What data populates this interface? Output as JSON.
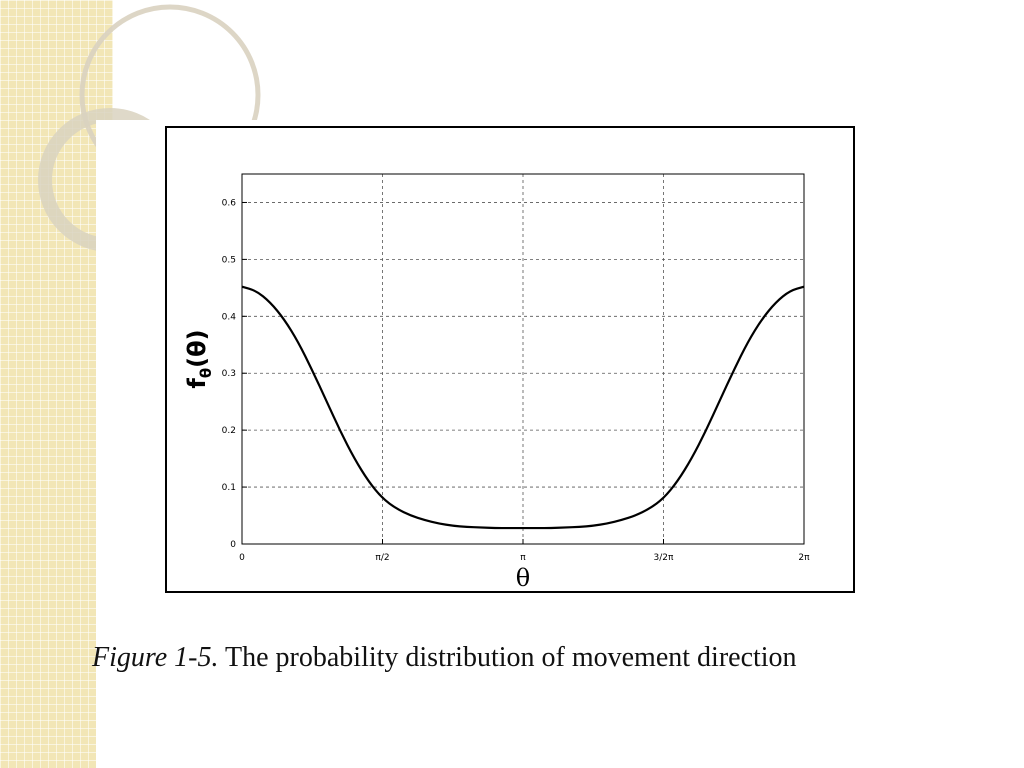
{
  "theme": {
    "strip_color": "#f2e6b6",
    "ring_color": "#d9d2c0",
    "curve_color": "#000000",
    "grid_color": "#555555"
  },
  "caption": {
    "figure_label": "Figure 1-5.",
    "text": "The probability distribution of movement direction"
  },
  "chart_data": {
    "type": "line",
    "title": "",
    "xlabel": "θ",
    "ylabel": "fθ(θ)",
    "xlim": [
      0,
      6.2832
    ],
    "ylim": [
      0,
      0.65
    ],
    "grid": true,
    "x_ticks": [
      {
        "value": 0,
        "label": "0"
      },
      {
        "value": 1.5708,
        "label": "π/2"
      },
      {
        "value": 3.1416,
        "label": "π"
      },
      {
        "value": 4.7124,
        "label": "3/2π"
      },
      {
        "value": 6.2832,
        "label": "2π"
      }
    ],
    "y_ticks": [
      {
        "value": 0,
        "label": "0"
      },
      {
        "value": 0.1,
        "label": "0.1"
      },
      {
        "value": 0.2,
        "label": "0.2"
      },
      {
        "value": 0.3,
        "label": "0.3"
      },
      {
        "value": 0.4,
        "label": "0.4"
      },
      {
        "value": 0.5,
        "label": "0.5"
      },
      {
        "value": 0.6,
        "label": "0.6"
      }
    ],
    "series": [
      {
        "x": [
          0,
          0.1571,
          0.3142,
          0.4712,
          0.6283,
          0.7854,
          0.9425,
          1.0996,
          1.2566,
          1.4137,
          1.5708,
          1.7279,
          1.885,
          2.042,
          2.1991,
          2.3562,
          2.5133,
          2.6704,
          2.8274,
          2.9845,
          3.1416,
          3.2987,
          3.4558,
          3.6128,
          3.7699,
          3.927,
          4.0841,
          4.2412,
          4.3982,
          4.5553,
          4.7124,
          4.8695,
          5.0265,
          5.1836,
          5.3407,
          5.4978,
          5.6549,
          5.8119,
          5.969,
          6.1261,
          6.2832
        ],
        "y": [
          0.452,
          0.445,
          0.425,
          0.395,
          0.355,
          0.305,
          0.252,
          0.198,
          0.15,
          0.11,
          0.08,
          0.062,
          0.05,
          0.042,
          0.036,
          0.032,
          0.03,
          0.029,
          0.028,
          0.028,
          0.028,
          0.028,
          0.028,
          0.029,
          0.03,
          0.032,
          0.036,
          0.042,
          0.05,
          0.062,
          0.08,
          0.11,
          0.15,
          0.198,
          0.252,
          0.305,
          0.355,
          0.395,
          0.425,
          0.445,
          0.452
        ]
      }
    ]
  }
}
